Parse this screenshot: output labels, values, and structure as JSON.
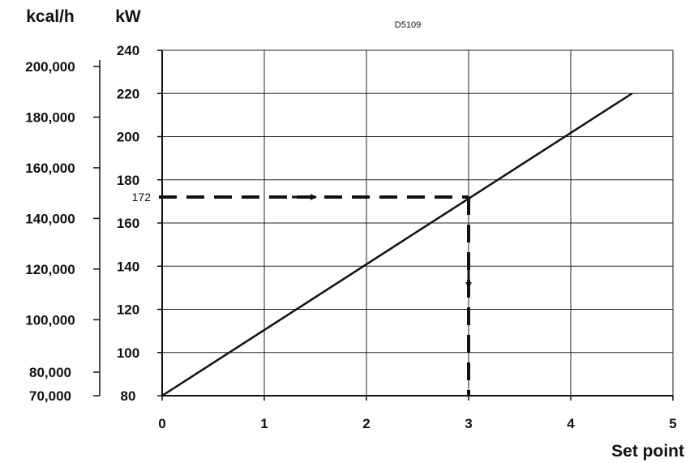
{
  "chart_data": {
    "type": "line",
    "figure_code": "D5109",
    "xlabel": "Set point",
    "ylabel": "kW",
    "secondary_ylabel": "kcal/h",
    "xlim": [
      0,
      5
    ],
    "ylim": [
      80,
      240
    ],
    "x_ticks": [
      "0",
      "1",
      "2",
      "3",
      "4",
      "5"
    ],
    "y_ticks": [
      "80",
      "100",
      "120",
      "140",
      "160",
      "180",
      "200",
      "220",
      "240"
    ],
    "secondary_y_ticks": [
      {
        "label": "70,000",
        "kcal": 70000
      },
      {
        "label": "80,000",
        "kcal": 80000
      },
      {
        "label": "100,000",
        "kcal": 100000
      },
      {
        "label": "120,000",
        "kcal": 120000
      },
      {
        "label": "140,000",
        "kcal": 140000
      },
      {
        "label": "160,000",
        "kcal": 160000
      },
      {
        "label": "180,000",
        "kcal": 180000
      },
      {
        "label": "200,000",
        "kcal": 200000
      }
    ],
    "grid": true,
    "series": [
      {
        "x": [
          0,
          4.6
        ],
        "y": [
          80,
          220
        ]
      }
    ],
    "annotation": {
      "label": "172",
      "y": 172,
      "x": 3
    }
  }
}
